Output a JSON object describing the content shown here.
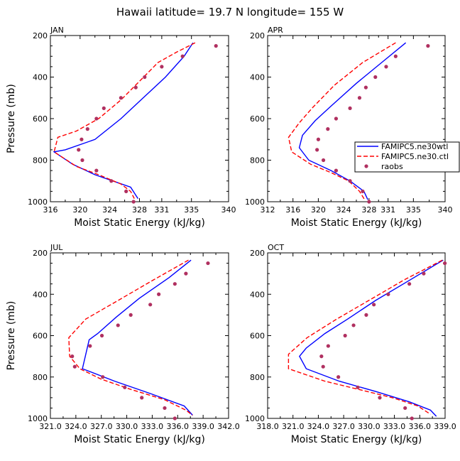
{
  "figure_title": "Hawaii  latitude= 19.7 N longitude= 155 W",
  "colors": {
    "series_wtl": "#0000ff",
    "series_ctl": "#ff0000",
    "raobs": "#b03060"
  },
  "chart_data": [
    {
      "type": "line",
      "panel": "JAN",
      "xlabel": "Moist Static Energy (kJ/kg)",
      "ylabel": "Pressure (mb)",
      "xlim": [
        316,
        340
      ],
      "ylim": [
        200,
        1000
      ],
      "xticks": [
        316,
        320,
        324,
        328,
        331,
        335,
        340
      ],
      "xtick_labels": [
        "316",
        "320",
        "324",
        "328",
        "331",
        "335",
        "340"
      ],
      "yticks": [
        200,
        400,
        600,
        800,
        1000
      ],
      "series": [
        {
          "name": "FAMIPC5.ne30wtl",
          "style": "solid",
          "points": [
            [
              335.2,
              235
            ],
            [
              334,
              300
            ],
            [
              331.5,
              400
            ],
            [
              328.5,
              500
            ],
            [
              325.5,
              600
            ],
            [
              322,
              700
            ],
            [
              318,
              750
            ],
            [
              316.5,
              760
            ],
            [
              319,
              820
            ],
            [
              322,
              870
            ],
            [
              326.8,
              930
            ],
            [
              327.8,
              985
            ]
          ]
        },
        {
          "name": "FAMIPC5.ne30.ctl",
          "style": "dashed",
          "points": [
            [
              335.5,
              235
            ],
            [
              333,
              280
            ],
            [
              330.5,
              330
            ],
            [
              328,
              420
            ],
            [
              325.5,
              510
            ],
            [
              322.5,
              600
            ],
            [
              319.5,
              660
            ],
            [
              317,
              690
            ],
            [
              316.5,
              760
            ],
            [
              319.5,
              830
            ],
            [
              322.5,
              870
            ],
            [
              325.5,
              915
            ],
            [
              326.8,
              950
            ],
            [
              327.3,
              985
            ]
          ]
        },
        {
          "name": "raobs",
          "style": "dots",
          "points": [
            [
              338.3,
              250
            ],
            [
              333.8,
              300
            ],
            [
              331,
              350
            ],
            [
              328.7,
              400
            ],
            [
              327.5,
              450
            ],
            [
              325.5,
              500
            ],
            [
              323.2,
              550
            ],
            [
              322.2,
              600
            ],
            [
              321,
              650
            ],
            [
              320.2,
              700
            ],
            [
              319.8,
              750
            ],
            [
              320.3,
              800
            ],
            [
              322.2,
              850
            ],
            [
              324.2,
              900
            ],
            [
              326.2,
              950
            ],
            [
              327.2,
              1000
            ]
          ]
        }
      ]
    },
    {
      "type": "line",
      "panel": "APR",
      "xlabel": "Moist Static Energy (kJ/kg)",
      "ylabel": "",
      "xlim": [
        312,
        340
      ],
      "ylim": [
        200,
        1000
      ],
      "xticks": [
        312,
        316,
        320,
        324,
        328,
        331,
        335,
        340
      ],
      "xtick_labels": [
        "312",
        "316",
        "320",
        "324",
        "328",
        "331",
        "335",
        "340"
      ],
      "yticks": [
        200,
        400,
        600,
        800,
        1000
      ],
      "series": [
        {
          "name": "FAMIPC5.ne30wtl",
          "style": "solid",
          "points": [
            [
              333.8,
              235
            ],
            [
              330,
              330
            ],
            [
              326,
              430
            ],
            [
              322,
              540
            ],
            [
              319.5,
              610
            ],
            [
              317.5,
              680
            ],
            [
              317,
              740
            ],
            [
              318.5,
              800
            ],
            [
              322,
              850
            ],
            [
              325,
              900
            ],
            [
              327.2,
              950
            ],
            [
              327.8,
              990
            ]
          ]
        },
        {
          "name": "FAMIPC5.ne30.ctl",
          "style": "dashed",
          "points": [
            [
              332.2,
              235
            ],
            [
              327,
              330
            ],
            [
              322.5,
              440
            ],
            [
              319,
              550
            ],
            [
              317,
              620
            ],
            [
              315.3,
              690
            ],
            [
              315.8,
              760
            ],
            [
              318.8,
              820
            ],
            [
              322,
              860
            ],
            [
              324.8,
              900
            ],
            [
              326.5,
              950
            ],
            [
              327.3,
              990
            ]
          ]
        },
        {
          "name": "raobs",
          "style": "dots",
          "points": [
            [
              337.3,
              250
            ],
            [
              332.2,
              300
            ],
            [
              330.7,
              350
            ],
            [
              329,
              400
            ],
            [
              327.5,
              450
            ],
            [
              326.5,
              500
            ],
            [
              325,
              550
            ],
            [
              322.8,
              600
            ],
            [
              321.5,
              650
            ],
            [
              320,
              700
            ],
            [
              319.8,
              750
            ],
            [
              320.8,
              800
            ],
            [
              322.8,
              850
            ],
            [
              325,
              900
            ],
            [
              327,
              950
            ],
            [
              328,
              1000
            ]
          ]
        }
      ]
    },
    {
      "type": "line",
      "panel": "JUL",
      "xlabel": "Moist Static Energy (kJ/kg)",
      "ylabel": "Pressure (mb)",
      "xlim": [
        321.03,
        342.03
      ],
      "ylim": [
        200,
        1000
      ],
      "xticks": [
        321.03,
        324.03,
        327.03,
        330.03,
        333.03,
        336.03,
        339.03,
        342.03
      ],
      "xtick_labels": [
        "321.0",
        "324.0",
        "327.0",
        "330.0",
        "333.0",
        "336.0",
        "339.0",
        "342.0"
      ],
      "yticks": [
        200,
        400,
        600,
        800,
        1000
      ],
      "series": [
        {
          "name": "FAMIPC5.ne30wtl",
          "style": "solid",
          "points": [
            [
              337.6,
              235
            ],
            [
              335,
              320
            ],
            [
              331.5,
              420
            ],
            [
              328.8,
              510
            ],
            [
              326.6,
              590
            ],
            [
              325.6,
              620
            ],
            [
              324.8,
              760
            ],
            [
              328.6,
              820
            ],
            [
              332.8,
              880
            ],
            [
              336.8,
              940
            ],
            [
              337.8,
              985
            ]
          ]
        },
        {
          "name": "FAMIPC5.ne30.ctl",
          "style": "dashed",
          "points": [
            [
              337.3,
              235
            ],
            [
              333.2,
              330
            ],
            [
              329,
              430
            ],
            [
              325.2,
              520
            ],
            [
              323.2,
              610
            ],
            [
              323.3,
              700
            ],
            [
              324.5,
              760
            ],
            [
              327,
              810
            ],
            [
              330.5,
              860
            ],
            [
              334.5,
              910
            ],
            [
              337,
              960
            ],
            [
              337.8,
              985
            ]
          ]
        },
        {
          "name": "raobs",
          "style": "dots",
          "points": [
            [
              339.6,
              250
            ],
            [
              337,
              300
            ],
            [
              335.7,
              350
            ],
            [
              333.8,
              400
            ],
            [
              332.8,
              450
            ],
            [
              330.5,
              500
            ],
            [
              329,
              550
            ],
            [
              327.1,
              600
            ],
            [
              325.7,
              650
            ],
            [
              323.6,
              700
            ],
            [
              323.9,
              750
            ],
            [
              327.2,
              800
            ],
            [
              329.8,
              850
            ],
            [
              331.8,
              900
            ],
            [
              334.5,
              950
            ],
            [
              335.7,
              1000
            ]
          ]
        }
      ]
    },
    {
      "type": "line",
      "panel": "OCT",
      "xlabel": "Moist Static Energy (kJ/kg)",
      "ylabel": "",
      "xlim": [
        318.03,
        339.03
      ],
      "ylim": [
        200,
        1000
      ],
      "xticks": [
        318.03,
        321.03,
        324.03,
        327.03,
        330.03,
        333.03,
        336.03,
        339.03
      ],
      "xtick_labels": [
        "318.0",
        "321.0",
        "324.0",
        "327.0",
        "330.0",
        "333.0",
        "336.0",
        "339.0"
      ],
      "yticks": [
        200,
        400,
        600,
        800,
        1000
      ],
      "series": [
        {
          "name": "FAMIPC5.ne30wtl",
          "style": "solid",
          "points": [
            [
              338.8,
              235
            ],
            [
              334.5,
              340
            ],
            [
              330.8,
              430
            ],
            [
              327.5,
              520
            ],
            [
              324.8,
              590
            ],
            [
              322.6,
              660
            ],
            [
              321.8,
              700
            ],
            [
              322.6,
              760
            ],
            [
              326.5,
              820
            ],
            [
              330.8,
              870
            ],
            [
              334.8,
              920
            ],
            [
              337.3,
              960
            ],
            [
              338,
              990
            ]
          ]
        },
        {
          "name": "FAMIPC5.ne30.ctl",
          "style": "dashed",
          "points": [
            [
              338.7,
              235
            ],
            [
              334.2,
              330
            ],
            [
              330,
              430
            ],
            [
              326.2,
              520
            ],
            [
              322.7,
              610
            ],
            [
              320.5,
              690
            ],
            [
              320.5,
              760
            ],
            [
              324.8,
              820
            ],
            [
              328.8,
              860
            ],
            [
              332.8,
              900
            ],
            [
              335.8,
              940
            ],
            [
              337.3,
              980
            ]
          ]
        },
        {
          "name": "raobs",
          "style": "dots",
          "points": [
            [
              339,
              250
            ],
            [
              336.5,
              300
            ],
            [
              334.8,
              350
            ],
            [
              332.3,
              400
            ],
            [
              330.6,
              450
            ],
            [
              329.7,
              500
            ],
            [
              328.2,
              550
            ],
            [
              327.2,
              600
            ],
            [
              325.2,
              650
            ],
            [
              324.4,
              700
            ],
            [
              324.6,
              750
            ],
            [
              326.4,
              800
            ],
            [
              328.7,
              850
            ],
            [
              331.3,
              900
            ],
            [
              334.3,
              950
            ],
            [
              335.1,
              1000
            ]
          ]
        }
      ]
    }
  ],
  "legend": {
    "entries": [
      {
        "label": "FAMIPC5.ne30wtl",
        "style": "solid"
      },
      {
        "label": "FAMIPC5.ne30.ctl",
        "style": "dashed"
      },
      {
        "label": "raobs",
        "style": "dots"
      }
    ]
  }
}
